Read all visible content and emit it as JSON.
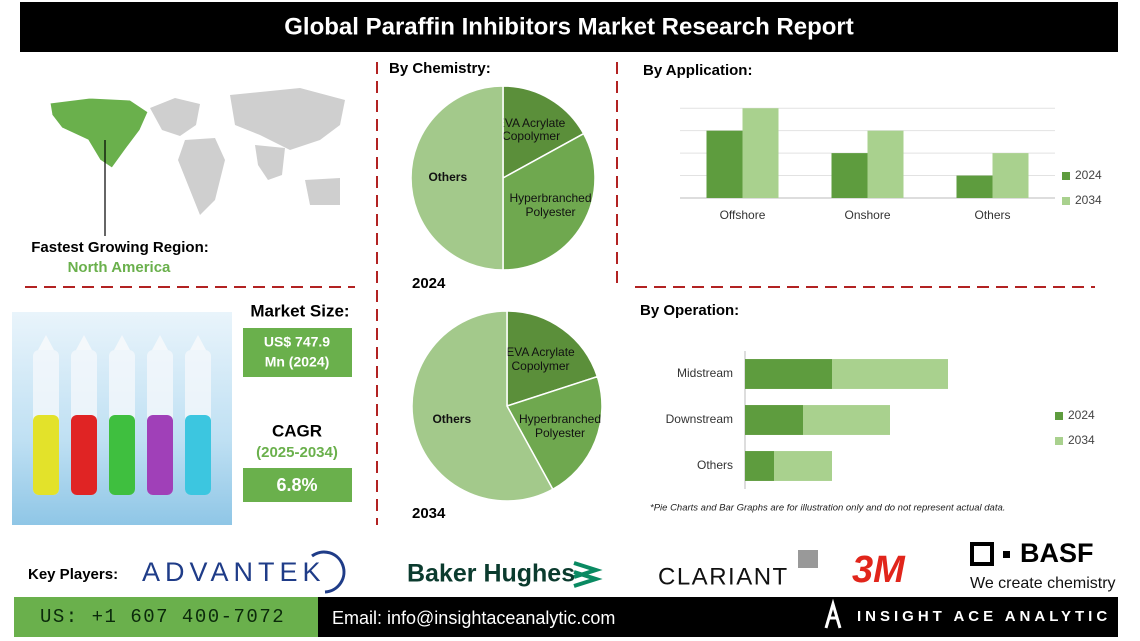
{
  "header": {
    "title": "Global Paraffin Inhibitors Market Research Report"
  },
  "region": {
    "label": "Fastest Growing Region:",
    "value": "North America"
  },
  "market_size": {
    "label": "Market Size:",
    "lines": [
      "US$ 747.9",
      "Mn (2024)"
    ]
  },
  "cagr": {
    "label": "CAGR",
    "period": "(2025-2034)",
    "value": "6.8%"
  },
  "chemistry_heading": "By Chemistry:",
  "chart_data": [
    {
      "type": "pie",
      "title": "2024",
      "categories": [
        "EVA Acrylate Copolymer",
        "Hyperbranched Polyester",
        "Others"
      ],
      "values": [
        17,
        33,
        50
      ],
      "colors": [
        "#5b8f3a",
        "#6fa84f",
        "#a3c98b"
      ]
    },
    {
      "type": "pie",
      "title": "2034",
      "categories": [
        "EVA Acrylate Copolymer",
        "Hyperbranched Polyester",
        "Others"
      ],
      "values": [
        20,
        22,
        58
      ],
      "colors": [
        "#5b8f3a",
        "#6fa84f",
        "#a3c98b"
      ]
    },
    {
      "type": "bar",
      "title": "By Application:",
      "categories": [
        "Offshore",
        "Onshore",
        "Others"
      ],
      "series": [
        {
          "name": "2024",
          "color": "#5e9c3e",
          "values": [
            3,
            2,
            1
          ]
        },
        {
          "name": "2034",
          "color": "#a9d18e",
          "values": [
            4,
            3,
            2
          ]
        }
      ],
      "ylim": [
        0,
        4.5
      ],
      "yticks": [
        0,
        1,
        2,
        3,
        4
      ],
      "grid": true,
      "legend": "right"
    },
    {
      "type": "bar",
      "orientation": "horizontal",
      "stacked": true,
      "title": "By Operation:",
      "categories": [
        "Midstream",
        "Downstream",
        "Others"
      ],
      "series": [
        {
          "name": "2024",
          "color": "#5e9c3e",
          "values": [
            3,
            2,
            1
          ]
        },
        {
          "name": "2034",
          "color": "#a9d18e",
          "values": [
            4,
            3,
            2
          ]
        }
      ],
      "xlim": [
        0,
        8
      ],
      "legend": "right"
    }
  ],
  "note": "*Pie Charts and Bar Graphs are for illustration only and do not represent actual data.",
  "key_players": {
    "label": "Key Players:",
    "companies": [
      "ADVANTEK",
      "Baker Hughes",
      "CLARIANT",
      "3M",
      "BASF"
    ],
    "basf_tagline": "We create chemistry"
  },
  "footer": {
    "phone": "US: +1 607 400-7072",
    "email": "Email: info@insightaceanalytic.com",
    "brand": "INSIGHT ACE ANALYTIC"
  }
}
